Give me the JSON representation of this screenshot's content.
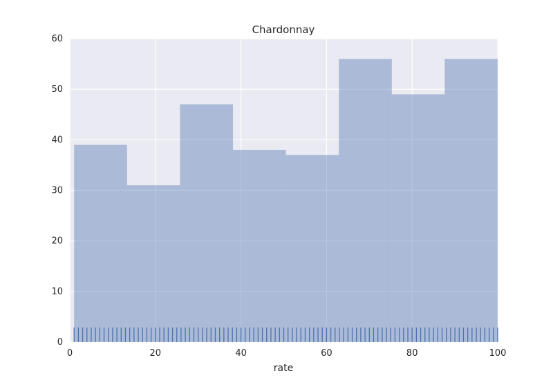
{
  "chart_data": {
    "type": "bar",
    "subtype": "histogram",
    "title": "Chardonnay",
    "xlabel": "rate",
    "ylabel": "",
    "xlim": [
      0,
      100
    ],
    "ylim": [
      0,
      60
    ],
    "xticks": [
      0,
      20,
      40,
      60,
      80,
      100
    ],
    "yticks": [
      0,
      10,
      20,
      30,
      40,
      50,
      60
    ],
    "grid": true,
    "bins": [
      {
        "start": 1,
        "end": 13.375,
        "value": 39
      },
      {
        "start": 13.375,
        "end": 25.75,
        "value": 31
      },
      {
        "start": 25.75,
        "end": 38.125,
        "value": 47
      },
      {
        "start": 38.125,
        "end": 50.5,
        "value": 38
      },
      {
        "start": 50.5,
        "end": 62.875,
        "value": 37
      },
      {
        "start": 62.875,
        "end": 75.25,
        "value": 56
      },
      {
        "start": 75.25,
        "end": 87.625,
        "value": 49
      },
      {
        "start": 87.625,
        "end": 100,
        "value": 56
      }
    ],
    "rug": {
      "from": 1,
      "to": 100,
      "step": 1
    },
    "colors": {
      "bar": "#4c72b0",
      "rug": "#4c72b0",
      "background": "#eaeaf2",
      "grid": "#ffffff"
    }
  }
}
